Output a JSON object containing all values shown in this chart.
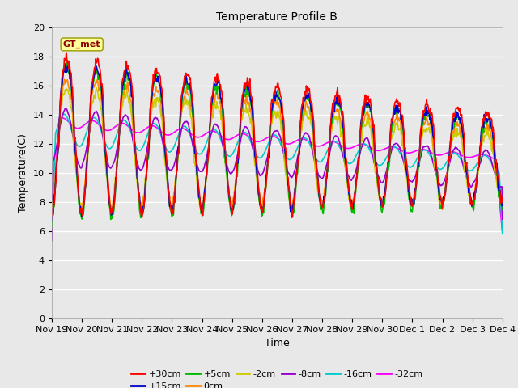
{
  "title": "Temperature Profile B",
  "xlabel": "Time",
  "ylabel": "Temperature(C)",
  "ylim": [
    0,
    20
  ],
  "background_color": "#e8e8e8",
  "gt_met_label": "GT_met",
  "series_order": [
    "+30cm",
    "+15cm",
    "+5cm",
    "0cm",
    "-2cm",
    "-8cm",
    "-16cm",
    "-32cm"
  ],
  "series": {
    "+30cm": {
      "color": "#ff0000",
      "lw": 1.2
    },
    "+15cm": {
      "color": "#0000cc",
      "lw": 1.2
    },
    "+5cm": {
      "color": "#00bb00",
      "lw": 1.2
    },
    "0cm": {
      "color": "#ff8800",
      "lw": 1.2
    },
    "-2cm": {
      "color": "#cccc00",
      "lw": 1.2
    },
    "-8cm": {
      "color": "#9900cc",
      "lw": 1.2
    },
    "-16cm": {
      "color": "#00cccc",
      "lw": 1.2
    },
    "-32cm": {
      "color": "#ff00ff",
      "lw": 1.2
    }
  },
  "x_ticks": [
    "Nov 19",
    "Nov 20",
    "Nov 21",
    "Nov 22",
    "Nov 23",
    "Nov 24",
    "Nov 25",
    "Nov 26",
    "Nov 27",
    "Nov 28",
    "Nov 29",
    "Nov 30",
    "Dec 1",
    "Dec 2",
    "Dec 3",
    "Dec 4"
  ],
  "n_days": 15,
  "n_per_day": 48
}
